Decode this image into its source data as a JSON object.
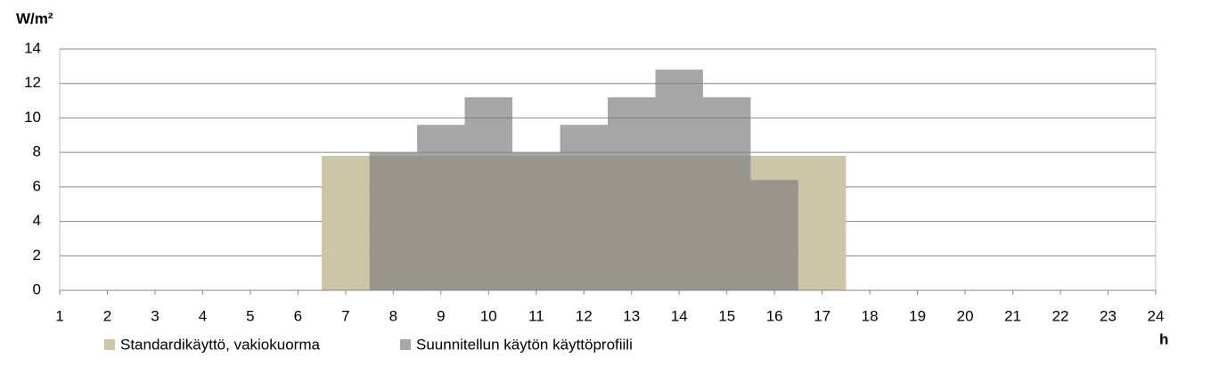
{
  "chart_data": {
    "type": "bar",
    "y_label": "W/m²",
    "x_label": "h",
    "xlim": [
      1,
      24
    ],
    "xticks": [
      1,
      2,
      3,
      4,
      5,
      6,
      7,
      8,
      9,
      10,
      11,
      12,
      13,
      14,
      15,
      16,
      17,
      18,
      19,
      20,
      21,
      22,
      23,
      24
    ],
    "ylim": [
      0,
      14
    ],
    "yticks": [
      0,
      2,
      4,
      6,
      8,
      10,
      12,
      14
    ],
    "grid": true,
    "series": [
      {
        "name": "Standardikäyttö, vakiokuorma",
        "color": "#cdc5a8",
        "opacity": 1,
        "x": [
          7,
          8,
          9,
          10,
          11,
          12,
          13,
          14,
          15,
          16,
          17
        ],
        "values": [
          7.8,
          7.8,
          7.8,
          7.8,
          7.8,
          7.8,
          7.8,
          7.8,
          7.8,
          7.8,
          7.8
        ]
      },
      {
        "name": "Suunnitellun käytön käyttöprofiili",
        "color": "#808080",
        "opacity": 0.7,
        "x": [
          8,
          9,
          10,
          11,
          12,
          13,
          14,
          15,
          16
        ],
        "values": [
          8,
          9.6,
          11.2,
          8,
          9.6,
          11.2,
          12.8,
          11.2,
          6.4
        ]
      }
    ]
  }
}
